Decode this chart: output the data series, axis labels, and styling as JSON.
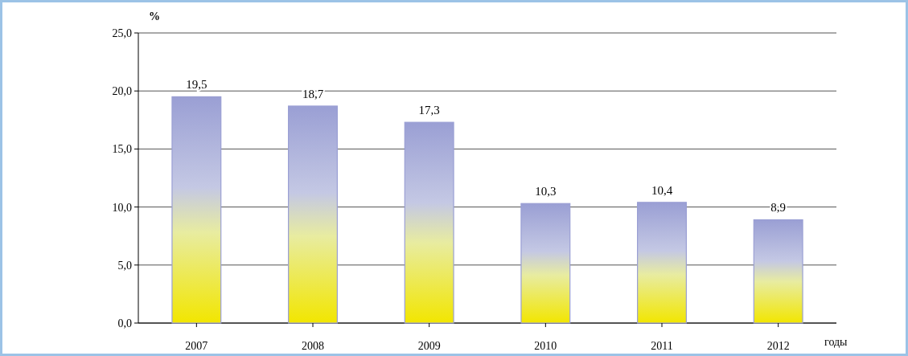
{
  "chart_data": {
    "type": "bar",
    "ylabel": "%",
    "xlabel": "годы",
    "categories": [
      "2007",
      "2008",
      "2009",
      "2010",
      "2011",
      "2012"
    ],
    "values": [
      19.5,
      18.7,
      17.3,
      10.3,
      10.4,
      8.9
    ],
    "value_labels": [
      "19,5",
      "18,7",
      "17,3",
      "10,3",
      "10,4",
      "8,9"
    ],
    "color": "#9a9fd4",
    "ylim": [
      0,
      25
    ],
    "yticks": [
      {
        "value": 0,
        "label": "0,0"
      },
      {
        "value": 5,
        "label": "5,0"
      },
      {
        "value": 10,
        "label": "10,0"
      },
      {
        "value": 15,
        "label": "15,0"
      },
      {
        "value": 20,
        "label": "20,0"
      },
      {
        "value": 25,
        "label": "25,0"
      }
    ],
    "grid": "y"
  }
}
